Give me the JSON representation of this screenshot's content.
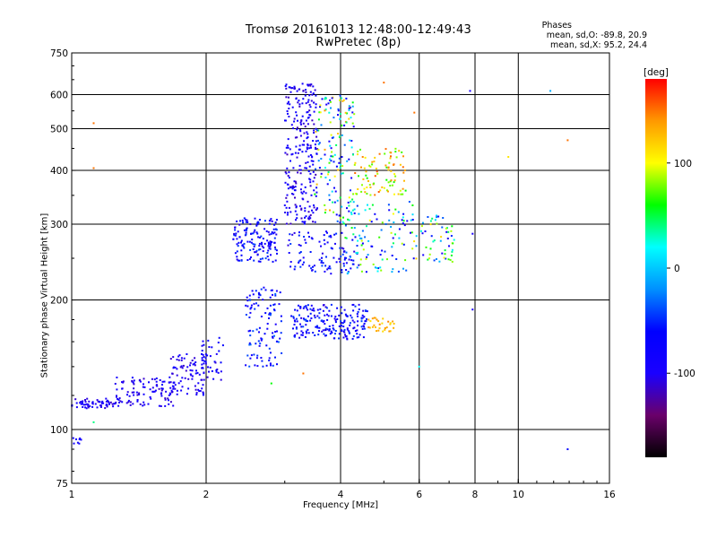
{
  "header": {
    "title": "Tromsø 20161013 12:48:00-12:49:43",
    "subtitle": "RwPretec (8p)"
  },
  "phase_stats": {
    "heading": "Phases",
    "o_line": "mean, sd,O: -89.8, 20.9",
    "x_line": "mean, sd,X:  95.2, 24.4"
  },
  "colorbar": {
    "title": "[deg]",
    "ticks": [
      {
        "label": "100",
        "value": 100
      },
      {
        "label": "0",
        "value": 0
      },
      {
        "label": "-100",
        "value": -100
      }
    ],
    "range": [
      -180,
      180
    ],
    "colormap": [
      "#000000",
      "#6a006a",
      "#1a00ff",
      "#0000ff",
      "#0090ff",
      "#00ffff",
      "#00ff00",
      "#ffff00",
      "#ff9900",
      "#ff0000"
    ]
  },
  "chart_data": {
    "type": "scatter",
    "xlabel": "Frequency [MHz]",
    "ylabel": "Stationary phase Virtual Height [km]",
    "x_scale": "log",
    "y_scale": "log",
    "xlim": [
      1,
      16
    ],
    "ylim": [
      75,
      750
    ],
    "grid": true,
    "x_ticks": [
      {
        "label": "1",
        "value": 1
      },
      {
        "label": "2",
        "value": 2
      },
      {
        "label": "4",
        "value": 4
      },
      {
        "label": "6",
        "value": 6
      },
      {
        "label": "8",
        "value": 8
      },
      {
        "label": "10",
        "value": 10
      },
      {
        "label": "16",
        "value": 16
      }
    ],
    "y_ticks": [
      {
        "label": "75",
        "value": 75
      },
      {
        "label": "100",
        "value": 100
      },
      {
        "label": "200",
        "value": 200
      },
      {
        "label": "300",
        "value": 300
      },
      {
        "label": "400",
        "value": 400
      },
      {
        "label": "500",
        "value": 500
      },
      {
        "label": "600",
        "value": 600
      },
      {
        "label": "750",
        "value": 750
      }
    ],
    "x_gridlines": [
      2,
      4,
      6,
      8,
      10
    ],
    "y_gridlines": [
      100,
      200,
      300,
      400,
      500,
      600
    ],
    "point_clusters": [
      {
        "freq": [
          1.0,
          1.05
        ],
        "height": [
          92,
          96
        ],
        "phase": [
          -100,
          -80
        ],
        "count": 8
      },
      {
        "freq": [
          1.0,
          1.25
        ],
        "height": [
          112,
          118
        ],
        "phase": [
          -115,
          -85
        ],
        "count": 60
      },
      {
        "freq": [
          1.25,
          1.7
        ],
        "height": [
          113,
          133
        ],
        "phase": [
          -115,
          -80
        ],
        "count": 110
      },
      {
        "freq": [
          1.65,
          2.0
        ],
        "height": [
          120,
          150
        ],
        "phase": [
          -115,
          -80
        ],
        "count": 80
      },
      {
        "freq": [
          1.95,
          2.2
        ],
        "height": [
          130,
          165
        ],
        "phase": [
          -110,
          -60
        ],
        "count": 40
      },
      {
        "freq": [
          2.3,
          2.9
        ],
        "height": [
          245,
          310
        ],
        "phase": [
          -110,
          -40
        ],
        "count": 150
      },
      {
        "freq": [
          2.45,
          2.95
        ],
        "height": [
          140,
          215
        ],
        "phase": [
          -100,
          -30
        ],
        "count": 110
      },
      {
        "freq": [
          3.0,
          3.55
        ],
        "height": [
          300,
          640
        ],
        "phase": [
          -120,
          -70
        ],
        "count": 260
      },
      {
        "freq": [
          3.5,
          4.3
        ],
        "height": [
          300,
          600
        ],
        "phase": [
          -100,
          140
        ],
        "count": 150
      },
      {
        "freq": [
          3.05,
          4.4
        ],
        "height": [
          230,
          290
        ],
        "phase": [
          -110,
          -40
        ],
        "count": 100
      },
      {
        "freq": [
          3.1,
          4.6
        ],
        "height": [
          162,
          195
        ],
        "phase": [
          -110,
          -40
        ],
        "count": 200
      },
      {
        "freq": [
          4.3,
          5.6
        ],
        "height": [
          350,
          450
        ],
        "phase": [
          60,
          160
        ],
        "count": 90
      },
      {
        "freq": [
          4.1,
          5.8
        ],
        "height": [
          230,
          340
        ],
        "phase": [
          -100,
          100
        ],
        "count": 110
      },
      {
        "freq": [
          4.6,
          5.3
        ],
        "height": [
          168,
          182
        ],
        "phase": [
          110,
          150
        ],
        "count": 30
      },
      {
        "freq": [
          5.8,
          7.2
        ],
        "height": [
          245,
          320
        ],
        "phase": [
          -110,
          120
        ],
        "count": 60
      }
    ],
    "isolated_points": [
      {
        "freq": 1.12,
        "height": 515,
        "phase": 150
      },
      {
        "freq": 1.12,
        "height": 405,
        "phase": 150
      },
      {
        "freq": 1.12,
        "height": 104,
        "phase": 40
      },
      {
        "freq": 7.8,
        "height": 612,
        "phase": -100
      },
      {
        "freq": 7.9,
        "height": 190,
        "phase": -100
      },
      {
        "freq": 7.9,
        "height": 285,
        "phase": -100
      },
      {
        "freq": 9.5,
        "height": 430,
        "phase": 110
      },
      {
        "freq": 11.8,
        "height": 612,
        "phase": -10
      },
      {
        "freq": 12.9,
        "height": 470,
        "phase": 150
      },
      {
        "freq": 12.9,
        "height": 90,
        "phase": -60
      },
      {
        "freq": 5.0,
        "height": 640,
        "phase": 150
      },
      {
        "freq": 5.85,
        "height": 545,
        "phase": 150
      },
      {
        "freq": 6.0,
        "height": 140,
        "phase": 20
      },
      {
        "freq": 3.3,
        "height": 135,
        "phase": 150
      },
      {
        "freq": 2.8,
        "height": 128,
        "phase": 60
      }
    ]
  }
}
